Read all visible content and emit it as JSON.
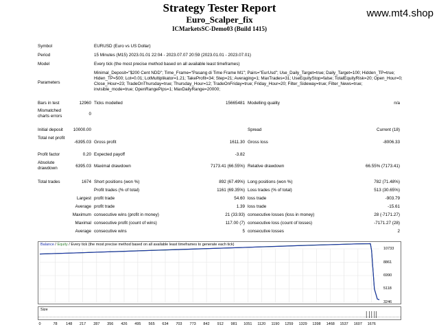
{
  "header": {
    "title": "Strategy Tester Report",
    "expert": "Euro_Scalper_fix",
    "server": "ICMarketsSC-Demo03 (Build 1415)",
    "website": "www.mt4.shop"
  },
  "info": {
    "symbol_label": "Symbol",
    "symbol": "EURUSD (Euro vs US Dollar)",
    "period_label": "Period",
    "period": "15 Minutes (M15) 2023.01.01 22:04 - 2023.07.07 20:59 (2023.01.01 - 2023.07.01)",
    "model_label": "Model",
    "model": "Every tick (the most precise method based on all available least timeframes)",
    "parameters_label": "Parameters",
    "parameters": "Minimal_Deposit=\"$200 Cent NDD\"; Time_Frame=\"Pasang di Time Frame M1\"; Pairs=\"EurUsd\"; Use_Daily_Target=true; Daily_Target=100; Hidden_TP=true; Hiden_TP=500; Lot=0.01; LotMultiplikator=1.21; TakeProfit=34; Step=21; Averaging=1; MaxTrades=31; UseEquityStop=false; TotalEquityRisk=20; Open_Hour=0; Close_Hour=23; TradeOnThursday=true; Thursday_Hour=12; TradeOnFriday=true; Friday_Hour=20; Filter_Sideway=true; Filter_News=true; invisible_mode=true; OpenRangePips=1; MaxDailyRange=20000;"
  },
  "bars": {
    "bars_label": "Bars in test",
    "bars_value": "12960",
    "ticks_label": "Ticks modelled",
    "ticks_value": "15665481",
    "quality_label": "Modelling quality",
    "quality_value": "n/a",
    "mismatch_label": "Mismatched charts errors",
    "mismatch_value": "0"
  },
  "stats": {
    "initial_deposit_label": "Initial deposit",
    "initial_deposit": "10000.00",
    "spread_label": "Spread",
    "spread": "Current (18)",
    "net_profit_label": "Total net profit",
    "net_profit": "-6395.03",
    "gross_profit_label": "Gross profit",
    "gross_profit": "1611.30",
    "gross_loss_label": "Gross loss",
    "gross_loss": "-8006.33",
    "profit_factor_label": "Profit factor",
    "profit_factor": "0.20",
    "expected_payoff_label": "Expected payoff",
    "expected_payoff": "-3.82",
    "abs_drawdown_label": "Absolute drawdown",
    "abs_drawdown": "6395.03",
    "max_drawdown_label": "Maximal drawdown",
    "max_drawdown": "7173.41 (66.55%)",
    "rel_drawdown_label": "Relative drawdown",
    "rel_drawdown": "66.55% (7173.41)",
    "total_trades_label": "Total trades",
    "total_trades": "1674",
    "short_label": "Short positions (won %)",
    "short": "892 (67.49%)",
    "long_label": "Long positions (won %)",
    "long": "782 (71.48%)",
    "profit_trades_label": "Profit trades (% of total)",
    "profit_trades": "1161 (69.35%)",
    "loss_trades_label": "Loss trades (% of total)",
    "loss_trades": "513 (30.65%)",
    "largest_label": "Largest",
    "largest_profit_label": "profit trade",
    "largest_profit": "54.60",
    "largest_loss_label": "loss trade",
    "largest_loss": "-903.79",
    "average_label": "Average",
    "average_profit_label": "profit trade",
    "average_profit": "1.39",
    "average_loss_label": "loss trade",
    "average_loss": "-15.61",
    "maximum_label": "Maximum",
    "max_cons_wins_label": "consecutive wins (profit in money)",
    "max_cons_wins": "21 (33.93)",
    "max_cons_losses_label": "consecutive losses (loss in money)",
    "max_cons_losses": "28 (-7171.27)",
    "maximal_label": "Maximal",
    "maximal_cons_profit_label": "consecutive profit (count of wins)",
    "maximal_cons_profit": "117.00 (7)",
    "maximal_cons_loss_label": "consecutive loss (count of losses)",
    "maximal_cons_loss": "-7171.27 (28)",
    "average2_label": "Average",
    "avg_cons_wins_label": "consecutive wins",
    "avg_cons_wins": "5",
    "avg_cons_losses_label": "consecutive losses",
    "avg_cons_losses": "2"
  },
  "graph": {
    "title_balance": "Balance",
    "title_sep1": " / ",
    "title_equity": "Equity",
    "title_rest": " / Every tick (the most precise method based on all available least timeframes to generate each tick)",
    "size_label": "Size",
    "balance_color": "#1a2faa",
    "equity_color": "#2d7d2d"
  },
  "chart_data": {
    "type": "line",
    "y_ticks": [
      "10733",
      "8861",
      "6990",
      "5118",
      "3246"
    ],
    "x_ticks": [
      "0",
      "78",
      "148",
      "217",
      "287",
      "356",
      "426",
      "495",
      "565",
      "634",
      "703",
      "773",
      "842",
      "912",
      "981",
      "1051",
      "1120",
      "1190",
      "1259",
      "1329",
      "1398",
      "1468",
      "1537",
      "1607",
      "1676"
    ],
    "ylim": [
      3246,
      10733
    ],
    "xlim": [
      0,
      1715
    ],
    "series": [
      {
        "x": [
          0,
          100,
          200,
          300,
          400,
          500,
          600,
          700,
          800,
          900,
          1000,
          1100,
          1200,
          1300,
          1400,
          1500,
          1600,
          1660,
          1670,
          1676,
          1690,
          1705,
          1715
        ],
        "values": [
          10000,
          10090,
          10180,
          10270,
          10360,
          10450,
          10540,
          10630,
          10720,
          10810,
          10900,
          10990,
          11080,
          11170,
          11260,
          11340,
          11420,
          11440,
          11450,
          10500,
          5118,
          3700,
          3600
        ]
      }
    ]
  }
}
